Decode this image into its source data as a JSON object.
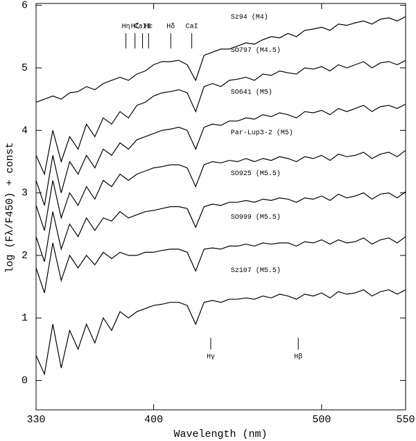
{
  "chart_data": {
    "type": "line",
    "xlabel": "Wavelength (nm)",
    "ylabel": "log (Fλ/F450) + const",
    "x": [
      330,
      335,
      340,
      345,
      350,
      355,
      360,
      365,
      370,
      375,
      380,
      385,
      390,
      395,
      400,
      405,
      410,
      415,
      420,
      425,
      430,
      435,
      440,
      445,
      450,
      455,
      460,
      465,
      470,
      475,
      480,
      485,
      490,
      495,
      500,
      505,
      510,
      515,
      520,
      525,
      530,
      535,
      540,
      545,
      550
    ],
    "series": [
      {
        "name": "Sz94 (M4)",
        "color": "#000000",
        "values": [
          4.45,
          4.5,
          4.55,
          4.5,
          4.6,
          4.62,
          4.7,
          4.65,
          4.75,
          4.8,
          4.85,
          4.8,
          4.9,
          4.95,
          5.05,
          5.1,
          5.1,
          5.12,
          5.05,
          4.8,
          5.2,
          5.25,
          5.3,
          5.3,
          5.35,
          5.4,
          5.38,
          5.45,
          5.5,
          5.48,
          5.55,
          5.5,
          5.6,
          5.62,
          5.65,
          5.6,
          5.7,
          5.68,
          5.72,
          5.75,
          5.7,
          5.78,
          5.8,
          5.75,
          5.82
        ]
      },
      {
        "name": "SO797 (M4.5)",
        "color": "#000000",
        "values": [
          3.6,
          3.3,
          4.0,
          3.5,
          3.9,
          3.7,
          4.1,
          3.9,
          4.2,
          4.1,
          4.3,
          4.2,
          4.4,
          4.45,
          4.55,
          4.6,
          4.62,
          4.65,
          4.6,
          4.3,
          4.7,
          4.75,
          4.7,
          4.8,
          4.82,
          4.85,
          4.8,
          4.9,
          4.88,
          4.95,
          4.92,
          4.9,
          5.0,
          4.98,
          5.02,
          4.95,
          5.05,
          5.0,
          5.05,
          5.1,
          5.0,
          5.08,
          5.1,
          5.05,
          5.12
        ]
      },
      {
        "name": "SO641 (M5)",
        "color": "#000000",
        "values": [
          3.2,
          2.8,
          3.6,
          3.0,
          3.5,
          3.3,
          3.6,
          3.4,
          3.7,
          3.6,
          3.8,
          3.7,
          3.85,
          3.9,
          3.95,
          4.0,
          4.02,
          4.05,
          4.0,
          3.7,
          4.05,
          4.1,
          4.08,
          4.15,
          4.15,
          4.2,
          4.18,
          4.25,
          4.22,
          4.28,
          4.25,
          4.2,
          4.3,
          4.28,
          4.32,
          4.25,
          4.35,
          4.3,
          4.35,
          4.4,
          4.3,
          4.38,
          4.4,
          4.35,
          4.42
        ]
      },
      {
        "name": "Par-Lup3-2 (M5)",
        "color": "#000000",
        "values": [
          2.8,
          2.4,
          3.2,
          2.6,
          3.0,
          2.8,
          3.1,
          2.9,
          3.2,
          3.1,
          3.3,
          3.2,
          3.3,
          3.35,
          3.4,
          3.42,
          3.45,
          3.45,
          3.4,
          3.1,
          3.45,
          3.5,
          3.48,
          3.52,
          3.5,
          3.55,
          3.5,
          3.55,
          3.52,
          3.58,
          3.55,
          3.5,
          3.58,
          3.55,
          3.6,
          3.52,
          3.62,
          3.58,
          3.6,
          3.65,
          3.55,
          3.62,
          3.65,
          3.58,
          3.68
        ]
      },
      {
        "name": "SO925 (M5.5)",
        "color": "#000000",
        "values": [
          2.3,
          1.9,
          2.7,
          2.1,
          2.5,
          2.3,
          2.6,
          2.4,
          2.6,
          2.55,
          2.7,
          2.6,
          2.65,
          2.7,
          2.72,
          2.75,
          2.78,
          2.78,
          2.75,
          2.45,
          2.78,
          2.82,
          2.8,
          2.85,
          2.85,
          2.88,
          2.85,
          2.9,
          2.88,
          2.92,
          2.9,
          2.85,
          2.92,
          2.9,
          2.95,
          2.88,
          2.98,
          2.92,
          2.95,
          3.0,
          2.9,
          2.98,
          3.0,
          2.92,
          3.02
        ]
      },
      {
        "name": "SO999 (M5.5)",
        "color": "#000000",
        "values": [
          1.8,
          1.4,
          2.2,
          1.6,
          2.0,
          1.8,
          2.0,
          1.85,
          2.05,
          1.95,
          2.05,
          2.0,
          2.0,
          2.05,
          2.05,
          2.08,
          2.1,
          2.1,
          2.05,
          1.75,
          2.1,
          2.12,
          2.1,
          2.15,
          2.15,
          2.18,
          2.15,
          2.2,
          2.18,
          2.2,
          2.2,
          2.15,
          2.22,
          2.2,
          2.25,
          2.18,
          2.25,
          2.2,
          2.22,
          2.28,
          2.18,
          2.25,
          2.28,
          2.2,
          2.3
        ]
      },
      {
        "name": "Sz107 (M5.5)",
        "color": "#000000",
        "values": [
          0.4,
          0.1,
          0.9,
          0.2,
          0.8,
          0.5,
          0.9,
          0.6,
          1.0,
          0.8,
          1.1,
          1.0,
          1.1,
          1.15,
          1.2,
          1.22,
          1.25,
          1.25,
          1.2,
          0.9,
          1.25,
          1.28,
          1.25,
          1.3,
          1.3,
          1.32,
          1.3,
          1.35,
          1.32,
          1.38,
          1.35,
          1.3,
          1.38,
          1.35,
          1.4,
          1.32,
          1.42,
          1.38,
          1.4,
          1.45,
          1.35,
          1.42,
          1.45,
          1.38,
          1.45
        ]
      }
    ],
    "annotations": [
      {
        "text": "Hη",
        "x": 383.5,
        "side": "top"
      },
      {
        "text": "Hζ",
        "x": 388.9,
        "side": "top"
      },
      {
        "text": "CaII",
        "x": 393.4,
        "side": "top"
      },
      {
        "text": "Hε",
        "x": 397.0,
        "side": "top"
      },
      {
        "text": "Hδ",
        "x": 410.2,
        "side": "top"
      },
      {
        "text": "CaI",
        "x": 422.7,
        "side": "top"
      },
      {
        "text": "Hγ",
        "x": 434.0,
        "side": "bottom"
      },
      {
        "text": "Hβ",
        "x": 486.1,
        "side": "bottom"
      }
    ],
    "xlim": [
      330,
      550
    ],
    "ylim": [
      -0.47,
      6.03
    ],
    "xticks": [
      330,
      400,
      500,
      550
    ],
    "yticks": [
      0,
      1,
      2,
      3,
      4,
      5,
      6
    ]
  }
}
